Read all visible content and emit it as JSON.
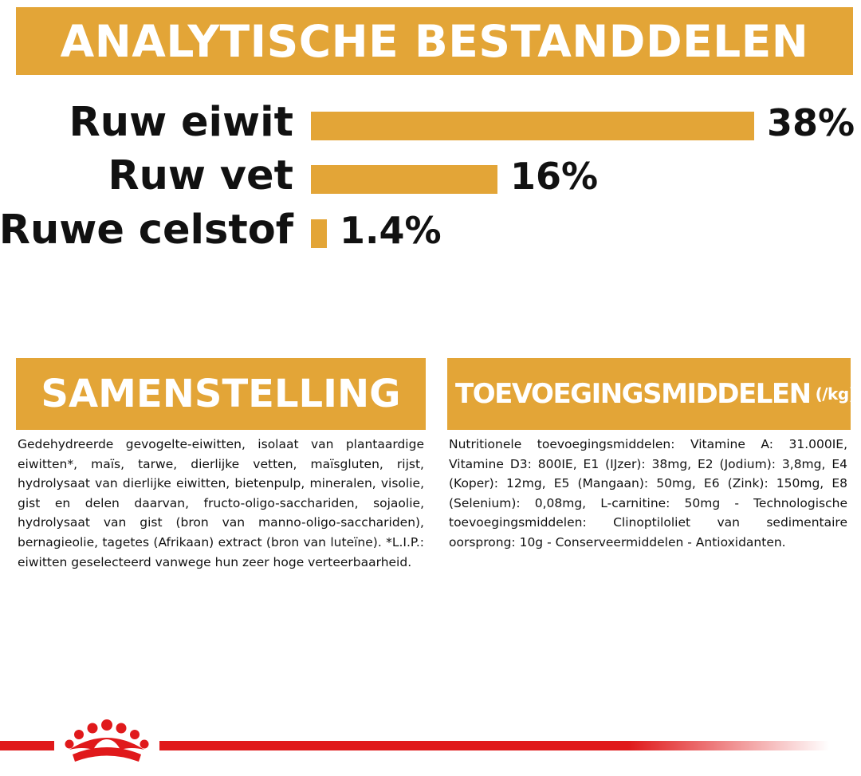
{
  "header": {
    "title": "ANALYTISCHE BESTANDDELEN"
  },
  "analysis": [
    {
      "label": "Ruw eiwit",
      "value_text": "38%",
      "value": 38
    },
    {
      "label": "Ruw vet",
      "value_text": "16%",
      "value": 16
    },
    {
      "label": "Ruwe celstof",
      "value_text": "1.4%",
      "value": 1.4
    }
  ],
  "composition": {
    "heading": "SAMENSTELLING",
    "text": "Gedehydreerde gevogelte-eiwitten, isolaat van plantaardige eiwitten*, maïs, tarwe, dierlijke vetten, maïsgluten, rijst, hydrolysaat van dierlijke eiwitten, bietenpulp, mineralen, visolie, gist en delen daarvan, fructo-oligo-sacchariden, sojaolie, hydrolysaat van gist (bron van manno-oligo-sacchariden), bernagieolie, tagetes (Afrikaan) extract (bron van luteïne). *L.I.P.: eiwitten geselecteerd vanwege hun zeer hoge verteerbaarheid."
  },
  "additives": {
    "heading": "TOEVOEGINGSMIDDELEN",
    "unit": "(/kg)",
    "text": "Nutritionele toevoegingsmiddelen: Vitamine A: 31.000IE, Vitamine D3: 800IE, E1 (IJzer): 38mg, E2 (Jodium): 3,8mg, E4 (Koper): 12mg, E5 (Mangaan): 50mg, E6 (Zink): 150mg, E8 (Selenium): 0,08mg, L-carnitine: 50mg - Technologische toevoegingsmiddelen: Clinoptiloliet van sedimentaire oorsprong: 10g - Conserveermiddelen - Antioxidanten."
  },
  "colors": {
    "accent": "#e3a537",
    "brand_red": "#e0191b"
  },
  "logo": {
    "icon": "crown-logo-icon"
  }
}
